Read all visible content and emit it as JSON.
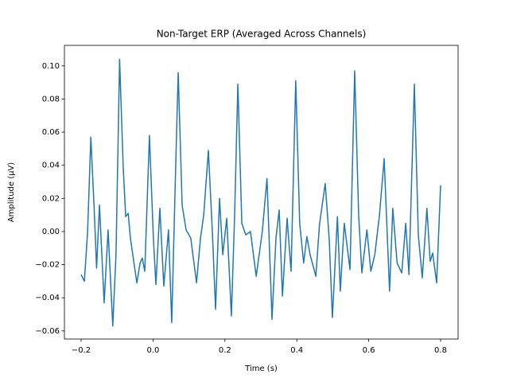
{
  "chart_data": {
    "type": "line",
    "title": "Non-Target ERP (Averaged Across Channels)",
    "x_label": "Time (s)",
    "y_label": "Amplitude (µV)",
    "xlim": [
      -0.2465,
      0.8487
    ],
    "ylim": [
      -0.0649,
      0.1124
    ],
    "xticks": [
      {
        "value": -0.2,
        "label": "−0.2"
      },
      {
        "value": 0,
        "label": "0.0"
      },
      0.2,
      0.4,
      0.6,
      0.8
    ],
    "yticks": [
      {
        "value": -0.06,
        "label": "−0.06"
      },
      {
        "value": -0.04,
        "label": "−0.04"
      },
      {
        "value": -0.02,
        "label": "−0.02"
      },
      {
        "value": 0,
        "label": "0.00"
      },
      0.02,
      0.04,
      0.06,
      0.08,
      {
        "value": 0.1,
        "label": "0.10"
      }
    ],
    "x": [
      -0.2,
      -0.191,
      -0.182,
      -0.173,
      -0.164,
      -0.157,
      -0.149,
      -0.136,
      -0.125,
      -0.112,
      -0.103,
      -0.093,
      -0.083,
      -0.076,
      -0.069,
      -0.063,
      -0.045,
      -0.036,
      -0.03,
      -0.023,
      -0.01,
      0.001,
      0.008,
      0.019,
      0.03,
      0.043,
      0.052,
      0.063,
      0.07,
      0.081,
      0.092,
      0.105,
      0.121,
      0.132,
      0.141,
      0.154,
      0.165,
      0.174,
      0.185,
      0.194,
      0.205,
      0.218,
      0.227,
      0.236,
      0.247,
      0.258,
      0.271,
      0.287,
      0.304,
      0.317,
      0.331,
      0.342,
      0.351,
      0.36,
      0.373,
      0.384,
      0.397,
      0.408,
      0.419,
      0.428,
      0.437,
      0.453,
      0.463,
      0.479,
      0.49,
      0.499,
      0.513,
      0.521,
      0.532,
      0.548,
      0.561,
      0.572,
      0.581,
      0.595,
      0.606,
      0.617,
      0.63,
      0.643,
      0.658,
      0.667,
      0.679,
      0.692,
      0.703,
      0.712,
      0.727,
      0.738,
      0.749,
      0.762,
      0.771,
      0.778,
      0.789,
      0.8
    ],
    "series": [
      {
        "name": "Non-Target ERP",
        "color": "#1f77b4",
        "values": [
          -0.026,
          -0.03,
          0.0,
          0.057,
          0.015,
          -0.022,
          0.016,
          -0.043,
          0.001,
          -0.057,
          -0.014,
          0.104,
          0.039,
          0.009,
          0.011,
          -0.004,
          -0.031,
          -0.019,
          -0.016,
          -0.024,
          0.058,
          -0.004,
          -0.032,
          0.014,
          -0.033,
          0.001,
          -0.055,
          0.039,
          0.096,
          0.016,
          0.001,
          -0.004,
          -0.031,
          -0.004,
          0.01,
          0.049,
          0.0,
          -0.047,
          0.02,
          -0.014,
          0.008,
          -0.051,
          0.01,
          0.089,
          0.005,
          -0.002,
          0.0,
          -0.027,
          0.0,
          0.032,
          -0.053,
          -0.004,
          0.013,
          -0.039,
          0.008,
          -0.024,
          0.091,
          0.005,
          -0.019,
          -0.003,
          -0.014,
          -0.027,
          0.004,
          0.029,
          -0.004,
          -0.052,
          0.009,
          -0.036,
          0.005,
          -0.023,
          0.097,
          0.01,
          -0.025,
          0.001,
          -0.024,
          -0.014,
          0.01,
          0.044,
          -0.036,
          0.014,
          -0.019,
          -0.025,
          0.005,
          -0.026,
          0.089,
          -0.002,
          -0.028,
          0.014,
          -0.018,
          -0.013,
          -0.031,
          0.028
        ]
      }
    ]
  }
}
